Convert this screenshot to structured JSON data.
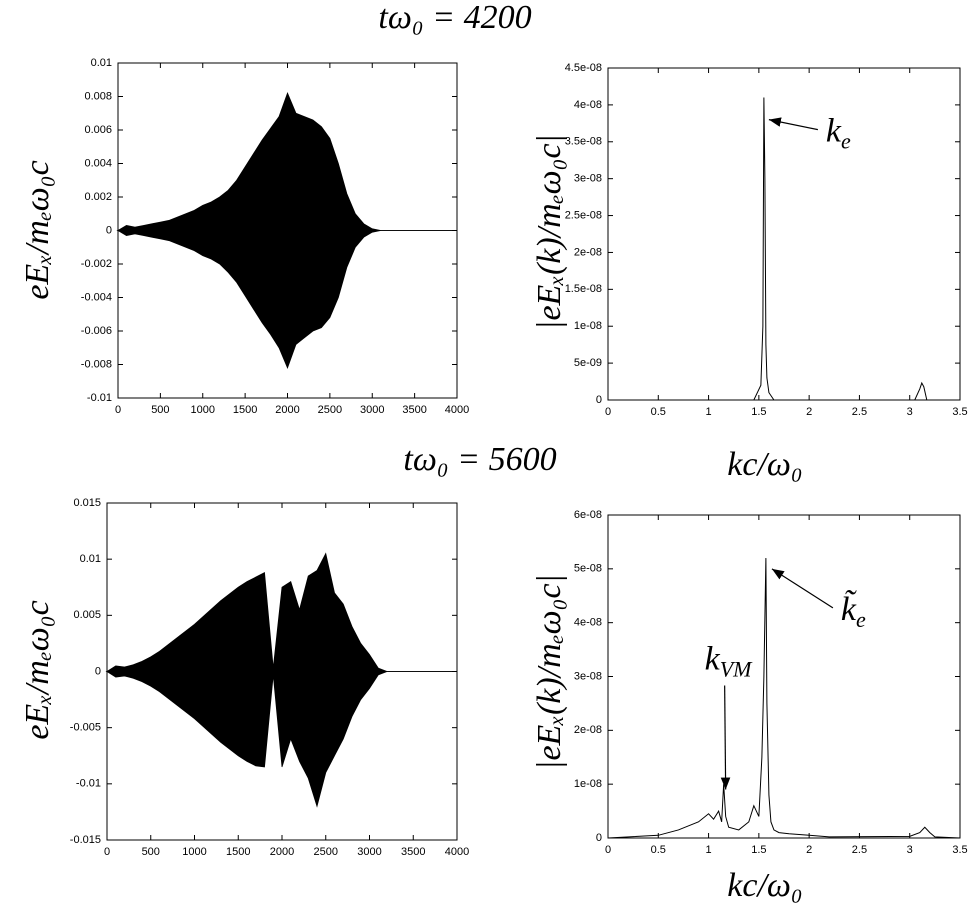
{
  "chart_data": [
    {
      "type": "area",
      "title": "tω₀ = 4200",
      "y_label": "eEₓ/mₑω₀c",
      "x": [
        0,
        100,
        200,
        300,
        400,
        500,
        600,
        700,
        800,
        900,
        1000,
        1100,
        1200,
        1300,
        1400,
        1500,
        1600,
        1700,
        1800,
        1900,
        2000,
        2100,
        2200,
        2300,
        2400,
        2500,
        2600,
        2700,
        2800,
        2900,
        3000,
        3100,
        3200,
        3300,
        3400,
        3500,
        3600,
        3700,
        3800,
        3900,
        4000
      ],
      "series": [
        {
          "color": "#000000",
          "values": [
            0,
            0.0003,
            0.0002,
            0.0003,
            0.0004,
            0.0005,
            0.0006,
            0.0008,
            0.001,
            0.0012,
            0.0015,
            0.0017,
            0.002,
            0.0024,
            0.003,
            0.0038,
            0.0046,
            0.0054,
            0.0061,
            0.0068,
            0.0082,
            0.007,
            0.0068,
            0.0066,
            0.0062,
            0.0055,
            0.004,
            0.0022,
            0.001,
            0.0004,
            0.0001,
            0,
            0,
            0,
            0,
            0,
            0,
            0,
            0,
            0,
            0
          ]
        },
        {
          "color": "#000000",
          "values": [
            0,
            -0.0003,
            -0.0002,
            -0.0003,
            -0.0004,
            -0.0005,
            -0.0006,
            -0.0008,
            -0.001,
            -0.0012,
            -0.0015,
            -0.0017,
            -0.002,
            -0.0025,
            -0.0031,
            -0.0039,
            -0.0047,
            -0.0055,
            -0.0062,
            -0.007,
            -0.0082,
            -0.0068,
            -0.0064,
            -0.006,
            -0.0058,
            -0.0052,
            -0.004,
            -0.0022,
            -0.001,
            -0.0004,
            -0.0001,
            0,
            0,
            0,
            0,
            0,
            0,
            0,
            0,
            0,
            0
          ]
        }
      ],
      "xlim": [
        0,
        4000
      ],
      "xticks": [
        0,
        500,
        1000,
        1500,
        2000,
        2500,
        3000,
        3500,
        4000
      ],
      "ylim": [
        -0.01,
        0.01
      ],
      "yticks": [
        -0.01,
        -0.008,
        -0.006,
        -0.004,
        -0.002,
        0,
        0.002,
        0.004,
        0.006,
        0.008,
        0.01
      ]
    },
    {
      "type": "line",
      "y_label": "|eEₓ(k)/mₑω₀c|",
      "x_label": "kc/ω₀",
      "x": [
        0,
        1.45,
        1.52,
        1.54,
        1.55,
        1.56,
        1.57,
        1.58,
        1.6,
        1.65,
        3.05,
        3.1,
        3.12,
        3.14,
        3.17,
        3.5
      ],
      "series": [
        {
          "color": "#000000",
          "values": [
            0,
            0,
            2e-09,
            1e-08,
            4.1e-08,
            3e-08,
            7.5e-09,
            3e-09,
            1e-09,
            0,
            0,
            1.5e-09,
            2.3e-09,
            1.8e-09,
            0,
            0
          ]
        }
      ],
      "xlim": [
        0,
        3.5
      ],
      "xticks": [
        0,
        0.5,
        1,
        1.5,
        2,
        2.5,
        3,
        3.5
      ],
      "ylim": [
        0,
        4.5e-08
      ],
      "yticks": [
        0,
        {
          "value": 5e-09,
          "label": "5e-09"
        },
        {
          "value": 1e-08,
          "label": "1e-08"
        },
        {
          "value": 1.5e-08,
          "label": "1.5e-08"
        },
        {
          "value": 2e-08,
          "label": "2e-08"
        },
        {
          "value": 2.5e-08,
          "label": "2.5e-08"
        },
        {
          "value": 3e-08,
          "label": "3e-08"
        },
        {
          "value": 3.5e-08,
          "label": "3.5e-08"
        },
        {
          "value": 4e-08,
          "label": "4e-08"
        },
        {
          "value": 4.5e-08,
          "label": "4.5e-08"
        }
      ],
      "annotations": [
        {
          "text": "k",
          "sub": "e",
          "x": 1.57,
          "y": 3.8e-08
        }
      ]
    },
    {
      "type": "area",
      "title": "tω₀ = 5600",
      "y_label": "eEₓ/mₑω₀c",
      "x": [
        0,
        100,
        200,
        300,
        400,
        500,
        600,
        700,
        800,
        900,
        1000,
        1100,
        1200,
        1300,
        1400,
        1500,
        1600,
        1700,
        1800,
        1900,
        2000,
        2100,
        2200,
        2300,
        2400,
        2500,
        2600,
        2700,
        2800,
        2900,
        3000,
        3100,
        3200,
        3300,
        3400,
        3500,
        3600,
        3700,
        3800,
        3900,
        4000
      ],
      "series": [
        {
          "color": "#000000",
          "values": [
            0,
            0.0005,
            0.0004,
            0.0006,
            0.0009,
            0.0013,
            0.0018,
            0.0024,
            0.003,
            0.0036,
            0.0042,
            0.0049,
            0.0056,
            0.0063,
            0.0069,
            0.0075,
            0.008,
            0.0084,
            0.0088,
            0.0003,
            0.0075,
            0.008,
            0.0055,
            0.0085,
            0.009,
            0.0105,
            0.007,
            0.006,
            0.004,
            0.0025,
            0.0015,
            0.0003,
            0,
            0,
            0,
            0,
            0,
            0,
            0,
            0,
            0
          ]
        },
        {
          "color": "#000000",
          "values": [
            0,
            -0.0005,
            -0.0004,
            -0.0006,
            -0.0009,
            -0.0013,
            -0.0018,
            -0.0024,
            -0.003,
            -0.0036,
            -0.0042,
            -0.0049,
            -0.0056,
            -0.0063,
            -0.0069,
            -0.0075,
            -0.008,
            -0.0084,
            -0.0085,
            -0.0003,
            -0.0085,
            -0.006,
            -0.008,
            -0.0095,
            -0.012,
            -0.009,
            -0.0075,
            -0.006,
            -0.004,
            -0.0025,
            -0.0015,
            -0.0003,
            0,
            0,
            0,
            0,
            0,
            0,
            0,
            0,
            0
          ]
        }
      ],
      "xlim": [
        0,
        4000
      ],
      "xticks": [
        0,
        500,
        1000,
        1500,
        2000,
        2500,
        3000,
        3500,
        4000
      ],
      "ylim": [
        -0.015,
        0.015
      ],
      "yticks": [
        -0.015,
        -0.01,
        -0.005,
        0,
        0.005,
        0.01,
        0.015
      ]
    },
    {
      "type": "line",
      "y_label": "|eEₓ(k)/mₑω₀c|",
      "x_label": "kc/ω₀",
      "x": [
        0,
        0.5,
        0.7,
        0.9,
        1.0,
        1.05,
        1.1,
        1.13,
        1.15,
        1.17,
        1.2,
        1.3,
        1.4,
        1.45,
        1.5,
        1.53,
        1.55,
        1.57,
        1.58,
        1.6,
        1.62,
        1.65,
        1.7,
        1.8,
        2.0,
        2.2,
        3.0,
        3.1,
        3.15,
        3.2,
        3.25,
        3.5
      ],
      "series": [
        {
          "color": "#000000",
          "values": [
            0,
            5e-10,
            1.5e-09,
            3e-09,
            4.5e-09,
            3.5e-09,
            5e-09,
            3e-09,
            1e-08,
            4e-09,
            2e-09,
            1.5e-09,
            3e-09,
            6e-09,
            4e-09,
            1.5e-08,
            3e-08,
            5.2e-08,
            2.5e-08,
            8e-09,
            3e-09,
            1.5e-09,
            1e-09,
            8e-10,
            5e-10,
            2e-10,
            3e-10,
            1e-09,
            2e-09,
            1e-09,
            2e-10,
            0
          ]
        }
      ],
      "xlim": [
        0,
        3.5
      ],
      "xticks": [
        0,
        0.5,
        1,
        1.5,
        2,
        2.5,
        3,
        3.5
      ],
      "ylim": [
        0,
        6e-08
      ],
      "yticks": [
        0,
        {
          "value": 1e-08,
          "label": "1e-08"
        },
        {
          "value": 2e-08,
          "label": "2e-08"
        },
        {
          "value": 3e-08,
          "label": "3e-08"
        },
        {
          "value": 4e-08,
          "label": "4e-08"
        },
        {
          "value": 5e-08,
          "label": "5e-08"
        },
        {
          "value": 6e-08,
          "label": "6e-08"
        }
      ],
      "annotations": [
        {
          "text": "k̃",
          "sub": "e",
          "x": 1.6,
          "y": 5e-08
        },
        {
          "text": "k",
          "sub": "VM",
          "x": 1.14,
          "y": 9e-09
        }
      ]
    }
  ]
}
